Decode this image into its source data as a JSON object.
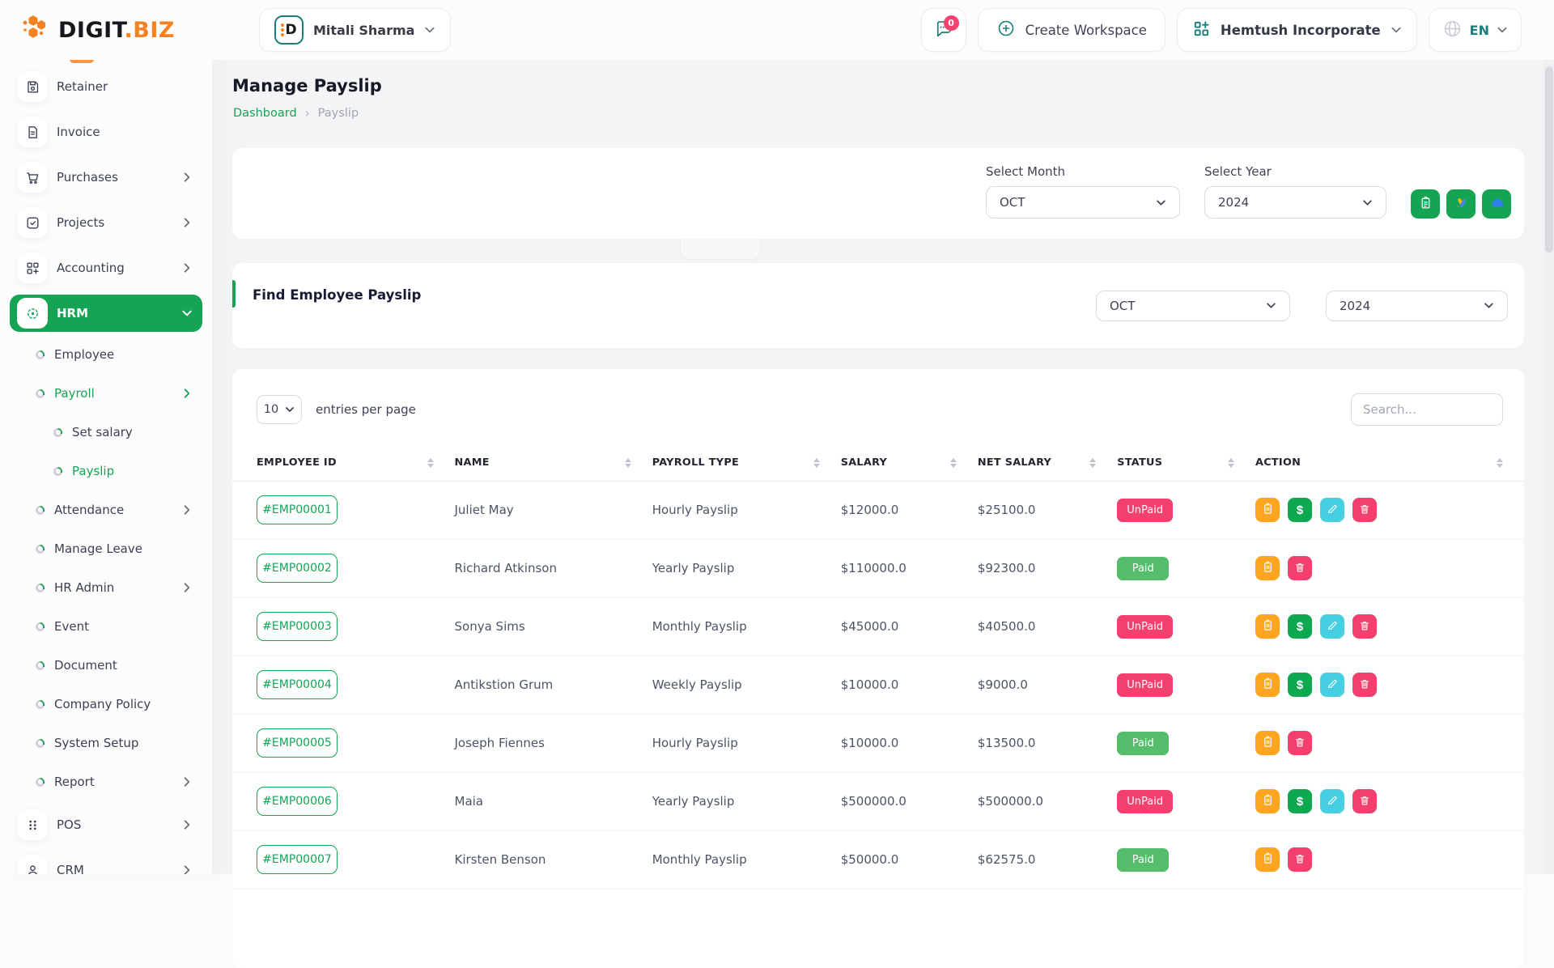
{
  "brand": {
    "logo_primary": "DIGIT",
    "logo_secondary": ".BIZ"
  },
  "header": {
    "user_name": "Mitali Sharma",
    "user_avatar_letter": "D",
    "chat_badge_count": "0",
    "create_workspace_label": "Create Workspace",
    "workspace_name": "Hemtush Incorporate",
    "language_code": "EN"
  },
  "sidebar": {
    "items": [
      {
        "label": "Retainer",
        "icon": "floppy-icon",
        "level": 1
      },
      {
        "label": "Invoice",
        "icon": "invoice-icon",
        "level": 1
      },
      {
        "label": "Purchases",
        "icon": "cart-icon",
        "level": 1,
        "chevron": "right"
      },
      {
        "label": "Projects",
        "icon": "check-square-icon",
        "level": 1,
        "chevron": "right"
      },
      {
        "label": "Accounting",
        "icon": "grid-plus-icon",
        "level": 1,
        "chevron": "right"
      },
      {
        "label": "HRM",
        "icon": "hrm-icon",
        "level": 1,
        "chevron": "down",
        "active": true
      },
      {
        "label": "Employee",
        "icon": "bullet-icon",
        "level": 2
      },
      {
        "label": "Payroll",
        "icon": "bullet-icon",
        "level": 2,
        "chevron": "right",
        "green": true
      },
      {
        "label": "Set salary",
        "icon": "bullet-icon",
        "level": 3
      },
      {
        "label": "Payslip",
        "icon": "bullet-icon",
        "level": 3,
        "green": true
      },
      {
        "label": "Attendance",
        "icon": "bullet-icon",
        "level": 2,
        "chevron": "right"
      },
      {
        "label": "Manage Leave",
        "icon": "bullet-icon",
        "level": 2
      },
      {
        "label": "HR Admin",
        "icon": "bullet-icon",
        "level": 2,
        "chevron": "right"
      },
      {
        "label": "Event",
        "icon": "bullet-icon",
        "level": 2
      },
      {
        "label": "Document",
        "icon": "bullet-icon",
        "level": 2
      },
      {
        "label": "Company Policy",
        "icon": "bullet-icon",
        "level": 2
      },
      {
        "label": "System Setup",
        "icon": "bullet-icon",
        "level": 2
      },
      {
        "label": "Report",
        "icon": "bullet-icon",
        "level": 2,
        "chevron": "right"
      },
      {
        "label": "POS",
        "icon": "pos-icon",
        "level": 1,
        "chevron": "right"
      },
      {
        "label": "CRM",
        "icon": "crm-icon",
        "level": 1,
        "chevron": "right"
      }
    ]
  },
  "page": {
    "title": "Manage Payslip",
    "breadcrumb_home": "Dashboard",
    "breadcrumb_separator": "›",
    "breadcrumb_current": "Payslip"
  },
  "filters": {
    "month_label": "Select Month",
    "month_value": "OCT",
    "year_label": "Select Year",
    "year_value": "2024"
  },
  "find_payslip": {
    "title": "Find Employee Payslip",
    "month_value": "OCT",
    "year_value": "2024"
  },
  "table": {
    "entries_value": "10",
    "entries_label": "entries per page",
    "search_placeholder": "Search...",
    "columns": [
      "EMPLOYEE ID",
      "NAME",
      "PAYROLL TYPE",
      "SALARY",
      "NET SALARY",
      "STATUS",
      "ACTION"
    ],
    "rows": [
      {
        "id": "#EMP00001",
        "name": "Juliet May",
        "payroll_type": "Hourly Payslip",
        "salary": "$12000.0",
        "net_salary": "$25100.0",
        "status": "UnPaid",
        "actions": [
          "invoice",
          "pay",
          "edit",
          "delete"
        ]
      },
      {
        "id": "#EMP00002",
        "name": "Richard Atkinson",
        "payroll_type": "Yearly Payslip",
        "salary": "$110000.0",
        "net_salary": "$92300.0",
        "status": "Paid",
        "actions": [
          "invoice",
          "delete"
        ]
      },
      {
        "id": "#EMP00003",
        "name": "Sonya Sims",
        "payroll_type": "Monthly Payslip",
        "salary": "$45000.0",
        "net_salary": "$40500.0",
        "status": "UnPaid",
        "actions": [
          "invoice",
          "pay",
          "edit",
          "delete"
        ]
      },
      {
        "id": "#EMP00004",
        "name": "Antikstion Grum",
        "payroll_type": "Weekly Payslip",
        "salary": "$10000.0",
        "net_salary": "$9000.0",
        "status": "UnPaid",
        "actions": [
          "invoice",
          "pay",
          "edit",
          "delete"
        ]
      },
      {
        "id": "#EMP00005",
        "name": "Joseph Fiennes",
        "payroll_type": "Hourly Payslip",
        "salary": "$10000.0",
        "net_salary": "$13500.0",
        "status": "Paid",
        "actions": [
          "invoice",
          "delete"
        ]
      },
      {
        "id": "#EMP00006",
        "name": "Maia",
        "payroll_type": "Yearly Payslip",
        "salary": "$500000.0",
        "net_salary": "$500000.0",
        "status": "UnPaid",
        "actions": [
          "invoice",
          "pay",
          "edit",
          "delete"
        ]
      },
      {
        "id": "#EMP00007",
        "name": "Kirsten Benson",
        "payroll_type": "Monthly Payslip",
        "salary": "$50000.0",
        "net_salary": "$62575.0",
        "status": "Paid",
        "actions": [
          "invoice",
          "delete"
        ]
      }
    ]
  },
  "colors": {
    "accent_green": "#14a454",
    "accent_teal": "#1b7e7a",
    "logo_orange": "#f58220",
    "status_paid": "#55bd6c",
    "status_unpaid": "#f2416e",
    "action_invoice": "#ffa51f",
    "action_pay": "#0fa750",
    "action_edit": "#45cfe0",
    "action_delete": "#f2416e"
  }
}
